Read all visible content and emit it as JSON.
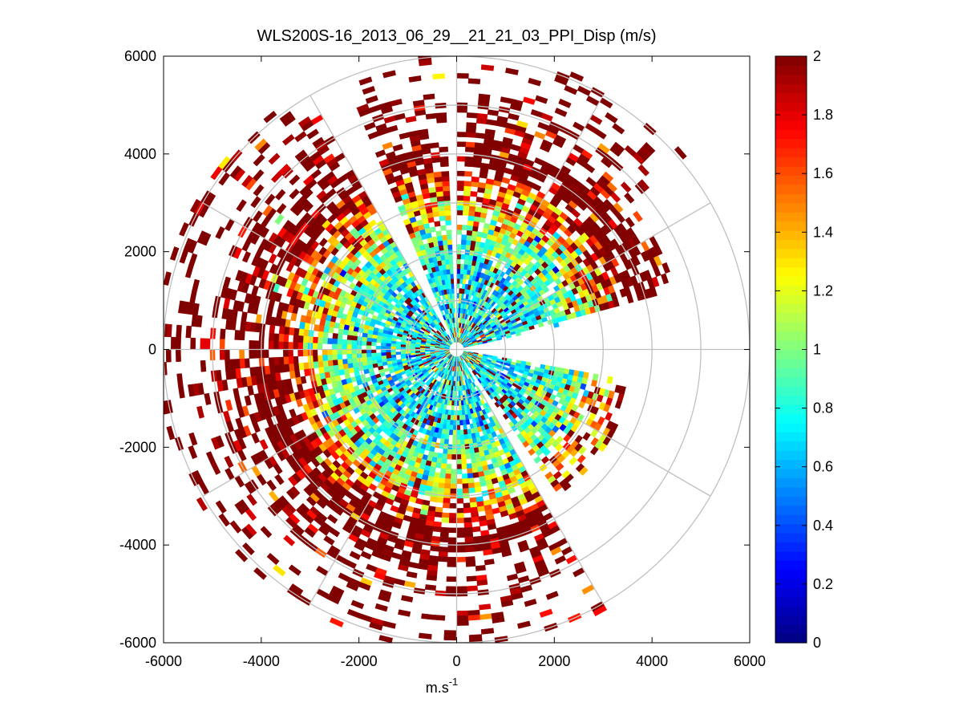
{
  "chart_data": {
    "type": "heatmap",
    "subtype": "polar-ppi-scan",
    "title": "WLS200S-16_2013_06_29__21_21_03_PPI_Disp (m/s)",
    "xlabel": "m.s",
    "xlabel_superscript": "-1",
    "ylabel": "",
    "xlim": [
      -6000,
      6000
    ],
    "ylim": [
      -6000,
      6000
    ],
    "x_ticks": [
      -6000,
      -4000,
      -2000,
      0,
      2000,
      4000,
      6000
    ],
    "y_ticks": [
      6000,
      4000,
      2000,
      0,
      -2000,
      -4000,
      -6000
    ],
    "x_tick_labels": [
      "-6000",
      "-4000",
      "-2000",
      "0",
      "2000",
      "4000",
      "6000"
    ],
    "y_tick_labels": [
      "6000",
      "4000",
      "2000",
      "0",
      "-2000",
      "-4000",
      "-6000"
    ],
    "polar_grid": {
      "ring_radii": [
        1000,
        2000,
        3000,
        4000,
        5000,
        6000
      ],
      "spoke_angles_deg": [
        0,
        30,
        60,
        90,
        120,
        150,
        180,
        210,
        240,
        270,
        300,
        330
      ]
    },
    "colorbar": {
      "colormap": "jet",
      "min": 0,
      "max": 2,
      "ticks": [
        0,
        0.2,
        0.4,
        0.6,
        0.8,
        1,
        1.2,
        1.4,
        1.6,
        1.8,
        2
      ],
      "tick_labels": [
        "0",
        "0.2",
        "0.4",
        "0.6",
        "0.8",
        "1",
        "1.2",
        "1.4",
        "1.6",
        "1.8",
        "2"
      ]
    },
    "scan": {
      "max_range": 6100,
      "gate_spacing": 100,
      "azimuth_step_deg": 2.5,
      "blocked_sectors_deg": [
        [
          -10,
          12
        ],
        [
          -62,
          -57
        ],
        [
          88,
          92
        ],
        [
          112,
          119
        ],
        [
          258,
          262
        ]
      ],
      "value_trend": "disp ~0.6-0.9 m/s near center rising to >=2 m/s beyond ~3500 m; returns sparse beyond ~5000 m",
      "seed": 20130629
    }
  }
}
